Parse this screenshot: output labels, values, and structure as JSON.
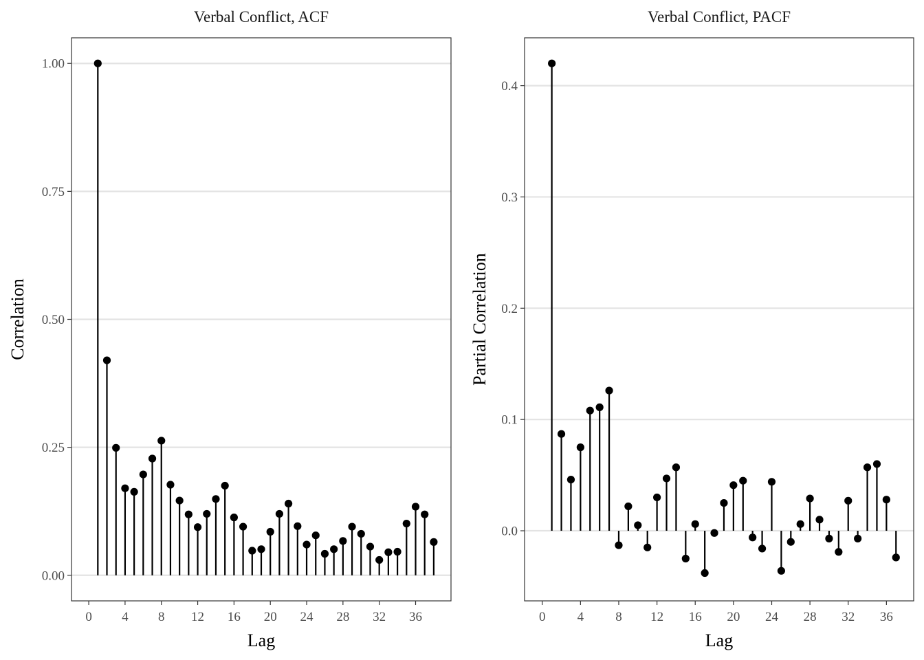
{
  "chart_data": [
    {
      "type": "lollipop",
      "title": "Verbal Conflict, ACF",
      "xlabel": "Lag",
      "ylabel": "Correlation",
      "xlim": [
        0,
        38
      ],
      "ylim": [
        0,
        1
      ],
      "x_ticks": [
        0,
        4,
        8,
        12,
        16,
        20,
        24,
        28,
        32,
        36
      ],
      "y_ticks": [
        0,
        0.25,
        0.5,
        0.75,
        1
      ],
      "y_tick_labels": [
        "0.00",
        "0.25",
        "0.50",
        "0.75",
        "1.00"
      ],
      "grid": "horizontal",
      "x": [
        1,
        2,
        3,
        4,
        5,
        6,
        7,
        8,
        9,
        10,
        11,
        12,
        13,
        14,
        15,
        16,
        17,
        18,
        19,
        20,
        21,
        22,
        23,
        24,
        25,
        26,
        27,
        28,
        29,
        30,
        31,
        32,
        33,
        34,
        35,
        36,
        37,
        38
      ],
      "values": [
        1.0,
        0.42,
        0.249,
        0.17,
        0.163,
        0.197,
        0.228,
        0.263,
        0.177,
        0.146,
        0.119,
        0.094,
        0.12,
        0.149,
        0.175,
        0.113,
        0.095,
        0.048,
        0.051,
        0.085,
        0.12,
        0.14,
        0.096,
        0.06,
        0.078,
        0.042,
        0.051,
        0.067,
        0.095,
        0.081,
        0.056,
        0.03,
        0.045,
        0.046,
        0.101,
        0.134,
        0.119,
        0.065
      ]
    },
    {
      "type": "lollipop",
      "title": "Verbal Conflict, PACF",
      "xlabel": "Lag",
      "ylabel": "Partial Correlation",
      "xlim": [
        0,
        37
      ],
      "ylim": [
        -0.04,
        0.42
      ],
      "x_ticks": [
        0,
        4,
        8,
        12,
        16,
        20,
        24,
        28,
        32,
        36
      ],
      "y_ticks": [
        0,
        0.1,
        0.2,
        0.3,
        0.4
      ],
      "y_tick_labels": [
        "0.0",
        "0.1",
        "0.2",
        "0.3",
        "0.4"
      ],
      "grid": "horizontal",
      "x": [
        1,
        2,
        3,
        4,
        5,
        6,
        7,
        8,
        9,
        10,
        11,
        12,
        13,
        14,
        15,
        16,
        17,
        18,
        19,
        20,
        21,
        22,
        23,
        24,
        25,
        26,
        27,
        28,
        29,
        30,
        31,
        32,
        33,
        34,
        35,
        36,
        37
      ],
      "values": [
        0.42,
        0.087,
        0.046,
        0.075,
        0.108,
        0.111,
        0.126,
        -0.013,
        0.022,
        0.005,
        -0.015,
        0.03,
        0.047,
        0.057,
        -0.025,
        0.006,
        -0.038,
        -0.002,
        0.025,
        0.041,
        0.045,
        -0.006,
        -0.016,
        0.044,
        -0.036,
        -0.01,
        0.006,
        0.029,
        0.01,
        -0.007,
        -0.019,
        0.027,
        -0.007,
        0.057,
        0.06,
        0.028,
        -0.024
      ]
    }
  ]
}
